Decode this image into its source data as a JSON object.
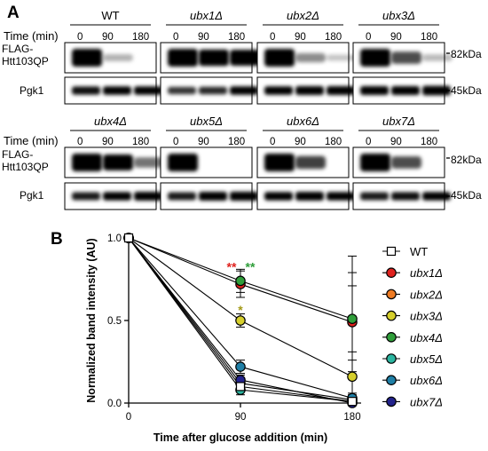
{
  "panel_a": {
    "letter": "A",
    "time_label": "Time (min)",
    "time_points": [
      "0",
      "90",
      "180"
    ],
    "row_labels": {
      "flag_line1": "FLAG-",
      "flag_line2": "Htt103QP",
      "pgk1": "Pgk1"
    },
    "markers": {
      "flag": "82kDa",
      "pgk1": "45kDa"
    },
    "blot_rows": [
      {
        "strains": [
          {
            "name": "WT",
            "flag": [
              1.0,
              0.15,
              0.0
            ],
            "pgk1": [
              0.75,
              0.8,
              0.8
            ]
          },
          {
            "name": "ubx1Δ",
            "flag": [
              1.0,
              0.9,
              0.85
            ],
            "pgk1": [
              0.6,
              0.65,
              0.8
            ]
          },
          {
            "name": "ubx2Δ",
            "flag": [
              1.0,
              0.3,
              0.08
            ],
            "pgk1": [
              0.8,
              0.85,
              0.85
            ]
          },
          {
            "name": "ubx3Δ",
            "flag": [
              1.0,
              0.55,
              0.12
            ],
            "pgk1": [
              0.85,
              0.85,
              0.95
            ]
          }
        ]
      },
      {
        "strains": [
          {
            "name": "ubx4Δ",
            "flag": [
              1.0,
              0.85,
              0.4
            ],
            "pgk1": [
              0.7,
              0.8,
              0.85
            ]
          },
          {
            "name": "ubx5Δ",
            "flag": [
              1.0,
              0.0,
              0.0
            ],
            "pgk1": [
              0.7,
              0.85,
              0.9
            ]
          },
          {
            "name": "ubx6Δ",
            "flag": [
              1.0,
              0.6,
              0.0
            ],
            "pgk1": [
              0.8,
              0.85,
              0.8
            ]
          },
          {
            "name": "ubx7Δ",
            "flag": [
              1.0,
              0.55,
              0.0
            ],
            "pgk1": [
              0.7,
              0.75,
              0.8
            ]
          }
        ]
      }
    ]
  },
  "panel_b": {
    "letter": "B",
    "chart_data": {
      "type": "line",
      "x": [
        0,
        90,
        180
      ],
      "xticks": [
        "0",
        "90",
        "180"
      ],
      "yticks": [
        "0.0",
        "0.5",
        "1.0"
      ],
      "xlabel": "Time after glucose addition (min)",
      "ylabel": "Normalized band intensity (AU)",
      "xlim": [
        0,
        180
      ],
      "ylim": [
        0,
        1.0
      ],
      "series": [
        {
          "name": "WT",
          "color": "#ffffff",
          "marker": "square",
          "values": [
            1.0,
            0.1,
            0.01
          ],
          "err": [
            0,
            0.03,
            0.88
          ]
        },
        {
          "name": "ubx1Δ",
          "color": "#e0221e",
          "marker": "circle",
          "values": [
            1.0,
            0.72,
            0.49
          ],
          "err": [
            0,
            0.08,
            0.3
          ]
        },
        {
          "name": "ubx2Δ",
          "color": "#ee7a22",
          "marker": "circle",
          "values": [
            1.0,
            0.12,
            0.02
          ],
          "err": [
            0,
            0.03,
            0.02
          ]
        },
        {
          "name": "ubx3Δ",
          "color": "#d6cf2c",
          "marker": "circle",
          "values": [
            1.0,
            0.5,
            0.16
          ],
          "err": [
            0,
            0.04,
            0.1
          ]
        },
        {
          "name": "ubx4Δ",
          "color": "#2f9e3a",
          "marker": "circle",
          "values": [
            1.0,
            0.74,
            0.51
          ],
          "err": [
            0,
            0.07,
            0.2
          ]
        },
        {
          "name": "ubx5Δ",
          "color": "#2bb5a0",
          "marker": "circle",
          "values": [
            1.0,
            0.08,
            0.01
          ],
          "err": [
            0,
            0.03,
            0.01
          ]
        },
        {
          "name": "ubx6Δ",
          "color": "#1f7fa6",
          "marker": "circle",
          "values": [
            1.0,
            0.22,
            0.03
          ],
          "err": [
            0,
            0.04,
            0.02
          ]
        },
        {
          "name": "ubx7Δ",
          "color": "#23238c",
          "marker": "circle",
          "values": [
            1.0,
            0.14,
            0.0
          ],
          "err": [
            0,
            0.03,
            0.01
          ]
        }
      ],
      "annotations": [
        {
          "text": "**",
          "color": "#e0221e",
          "x": 90,
          "y": 0.83,
          "side": "left"
        },
        {
          "text": "**",
          "color": "#2f9e3a",
          "x": 90,
          "y": 0.83,
          "side": "right"
        },
        {
          "text": "*",
          "color": "#a39a16",
          "x": 90,
          "y": 0.57,
          "side": "center"
        }
      ],
      "legend_position": "right"
    }
  }
}
